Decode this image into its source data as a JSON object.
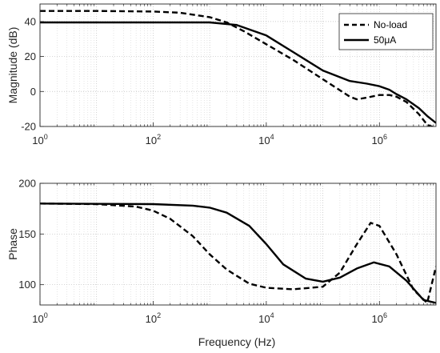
{
  "figure": {
    "xlabel": "Frequency (Hz)",
    "legend": [
      "No-load",
      "50μA"
    ]
  },
  "chart_data": [
    {
      "type": "line",
      "title": "",
      "xlabel": "",
      "ylabel": "Magnitude (dB)",
      "xscale": "log",
      "xlim": [
        1,
        10000000
      ],
      "ylim": [
        -20,
        50
      ],
      "x_ticks": [
        1,
        100,
        10000,
        1000000
      ],
      "x_tick_labels": [
        {
          "b": "10",
          "e": "0"
        },
        {
          "b": "10",
          "e": "2"
        },
        {
          "b": "10",
          "e": "4"
        },
        {
          "b": "10",
          "e": "6"
        }
      ],
      "y_ticks": [
        -20,
        0,
        20,
        40
      ],
      "y_tick_labels": [
        "-20",
        "0",
        "20",
        "40"
      ],
      "grid": true,
      "legend_position": "top-right",
      "series": [
        {
          "name": "No-load",
          "style": "dashed",
          "x": [
            1,
            10,
            100,
            300,
            1000,
            2000,
            4000,
            10000,
            30000,
            100000,
            300000,
            400000,
            600000,
            1000000,
            1500000,
            2000000,
            3000000,
            5000000,
            7000000,
            10000000
          ],
          "y": [
            46,
            46,
            45.7,
            45,
            42.5,
            39.5,
            34.5,
            27,
            18,
            7,
            -3,
            -4.5,
            -3.5,
            -2,
            -2,
            -3,
            -6,
            -13,
            -19,
            -21
          ]
        },
        {
          "name": "50μA",
          "style": "solid",
          "x": [
            1,
            100,
            1000,
            3000,
            10000,
            30000,
            100000,
            300000,
            600000,
            1000000,
            1500000,
            2000000,
            3000000,
            5000000,
            7000000,
            10000000
          ],
          "y": [
            39.5,
            39.5,
            39.5,
            38,
            32,
            22.5,
            12,
            6,
            4.5,
            3,
            1,
            -1.5,
            -4.5,
            -9.5,
            -14,
            -18
          ]
        }
      ]
    },
    {
      "type": "line",
      "title": "",
      "xlabel": "Frequency (Hz)",
      "ylabel": "Phase",
      "xscale": "log",
      "xlim": [
        1,
        10000000
      ],
      "ylim": [
        80,
        200
      ],
      "x_ticks": [
        1,
        100,
        10000,
        1000000
      ],
      "x_tick_labels": [
        {
          "b": "10",
          "e": "0"
        },
        {
          "b": "10",
          "e": "2"
        },
        {
          "b": "10",
          "e": "4"
        },
        {
          "b": "10",
          "e": "6"
        }
      ],
      "y_ticks": [
        100,
        150,
        200
      ],
      "y_tick_labels": [
        "100",
        "150",
        "200"
      ],
      "grid": true,
      "series": [
        {
          "name": "No-load",
          "style": "dashed",
          "x": [
            1,
            10,
            50,
            100,
            200,
            500,
            1000,
            2000,
            5000,
            10000,
            30000,
            100000,
            200000,
            400000,
            700000,
            1000000,
            2000000,
            4000000,
            7000000,
            10000000
          ],
          "y": [
            180,
            179.5,
            177,
            173,
            165,
            148,
            130,
            115,
            101,
            97,
            95.5,
            98,
            112,
            140,
            161,
            158,
            130,
            95,
            82,
            118
          ]
        },
        {
          "name": "50μA",
          "style": "solid",
          "x": [
            1,
            100,
            500,
            1000,
            2000,
            5000,
            10000,
            20000,
            50000,
            100000,
            200000,
            400000,
            800000,
            1500000,
            3000000,
            6000000,
            10000000
          ],
          "y": [
            180,
            179.5,
            178,
            176,
            171,
            158,
            140,
            120,
            106,
            103,
            107,
            116,
            122,
            118,
            104,
            85,
            82
          ]
        }
      ]
    }
  ]
}
